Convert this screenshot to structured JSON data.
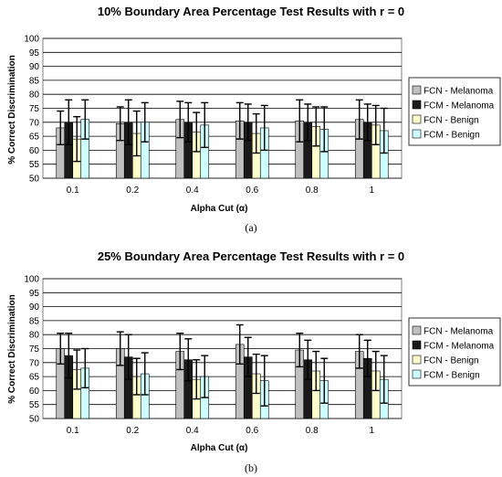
{
  "chart_data": [
    {
      "type": "bar",
      "title": "10% Boundary Area Percentage Test Results with r = 0",
      "xlabel": "Alpha Cut (α)",
      "ylabel": "% Correct Discrimination",
      "ylim": [
        50,
        100
      ],
      "yticks": [
        50,
        55,
        60,
        65,
        70,
        75,
        80,
        85,
        90,
        95,
        100
      ],
      "grid": true,
      "legend_position": "right",
      "caption": "(a)",
      "categories": [
        "0.1",
        "0.2",
        "0.4",
        "0.6",
        "0.8",
        "1"
      ],
      "series": [
        {
          "name": "FCN - Melanoma",
          "color": "#c0c0c0",
          "values": [
            68,
            69.5,
            71,
            70.5,
            70.5,
            71
          ],
          "errors": [
            6,
            6,
            6.5,
            6.5,
            7.5,
            7
          ]
        },
        {
          "name": "FCM - Melanoma",
          "color": "#1a1a1a",
          "values": [
            70,
            70,
            70,
            70,
            70,
            70
          ],
          "errors": [
            8,
            8,
            7,
            6.5,
            6.5,
            6.5
          ]
        },
        {
          "name": "FCN - Benign",
          "color": "#ffffcc",
          "values": [
            64,
            66,
            66.5,
            66,
            68.5,
            69
          ],
          "errors": [
            8,
            8,
            7,
            7,
            7,
            7
          ]
        },
        {
          "name": "FCM - Benign",
          "color": "#ccffff",
          "values": [
            71,
            70,
            69,
            68,
            67.5,
            67
          ],
          "errors": [
            7,
            7,
            8,
            8,
            8,
            8
          ]
        }
      ]
    },
    {
      "type": "bar",
      "title": "25% Boundary Area Percentage Test Results with r = 0",
      "xlabel": "Alpha Cut (α)",
      "ylabel": "% Correct Discrimination",
      "ylim": [
        50,
        100
      ],
      "yticks": [
        50,
        55,
        60,
        65,
        70,
        75,
        80,
        85,
        90,
        95,
        100
      ],
      "grid": true,
      "legend_position": "right",
      "caption": "(b)",
      "categories": [
        "0.1",
        "0.2",
        "0.4",
        "0.6",
        "0.8",
        "1"
      ],
      "series": [
        {
          "name": "FCN - Melanoma",
          "color": "#c0c0c0",
          "values": [
            75,
            75,
            74,
            76.5,
            74.5,
            74
          ],
          "errors": [
            5.5,
            6,
            6.5,
            7,
            6,
            6
          ]
        },
        {
          "name": "FCM - Melanoma",
          "color": "#1a1a1a",
          "values": [
            72.5,
            72,
            71,
            72,
            71,
            71.5
          ],
          "errors": [
            8,
            8,
            7.5,
            7,
            7,
            6.5
          ]
        },
        {
          "name": "FCN - Benign",
          "color": "#ffffcc",
          "values": [
            67.5,
            65,
            64,
            66,
            67,
            67
          ],
          "errors": [
            7,
            6.5,
            7,
            7,
            7,
            7
          ]
        },
        {
          "name": "FCM - Benign",
          "color": "#ccffff",
          "values": [
            68,
            66,
            65,
            63.5,
            63.5,
            64
          ],
          "errors": [
            7,
            7.5,
            7.5,
            9,
            8,
            8.5
          ]
        }
      ]
    }
  ]
}
